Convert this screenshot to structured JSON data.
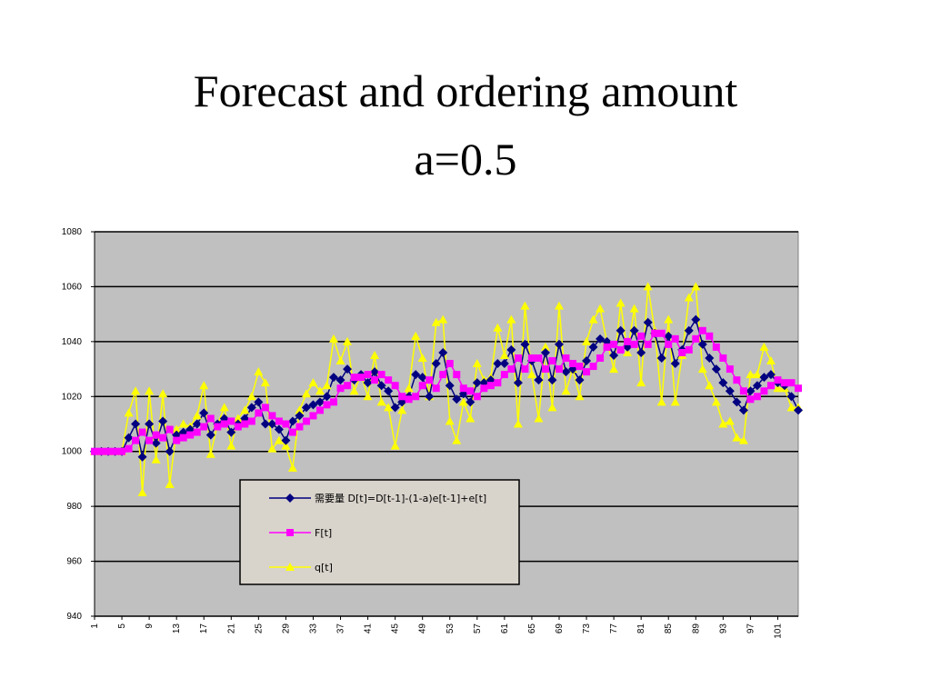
{
  "chart_data": {
    "type": "line",
    "title": "Forecast and ordering amount",
    "subtitle": "a=0.5",
    "categories": [
      "1",
      null,
      null,
      null,
      "5",
      null,
      null,
      null,
      "9",
      null,
      null,
      null,
      "13",
      null,
      null,
      null,
      "17",
      null,
      null,
      null,
      "21",
      null,
      null,
      null,
      "25",
      null,
      null,
      null,
      "29",
      null,
      null,
      null,
      "33",
      null,
      null,
      null,
      "37",
      null,
      null,
      null,
      "41",
      null,
      null,
      null,
      "45",
      null,
      null,
      null,
      "49",
      null,
      null,
      null,
      "53",
      null,
      null,
      null,
      "57",
      null,
      null,
      null,
      "61",
      null,
      null,
      null,
      "65",
      null,
      null,
      null,
      "69",
      null,
      null,
      null,
      "73",
      null,
      null,
      null,
      "77",
      null,
      null,
      null,
      "81",
      null,
      null,
      null,
      "85",
      null,
      null,
      null,
      "89",
      null,
      null,
      null,
      "93",
      null,
      null,
      null,
      "97",
      null,
      null,
      null,
      "101",
      null,
      null,
      null
    ],
    "series": [
      {
        "name": "需要量 D[t]=D[t-1]-(1-a)e[t-1]+e[t]",
        "color": "#000080",
        "marker": "diamond",
        "values": [
          1000,
          1000,
          1000,
          1000,
          1000,
          1005,
          1010,
          998,
          1010,
          1003,
          1011,
          1000,
          1006,
          1007,
          1008,
          1010,
          1014,
          1006,
          1010,
          1012,
          1007,
          1010,
          1012,
          1016,
          1018,
          1010,
          1010,
          1008,
          1004,
          1011,
          1013,
          1016,
          1017,
          1018,
          1020,
          1027,
          1026,
          1030,
          1026,
          1028,
          1025,
          1029,
          1024,
          1022,
          1016,
          1018,
          1020,
          1028,
          1027,
          1020,
          1032,
          1036,
          1024,
          1019,
          1021,
          1018,
          1025,
          1025,
          1026,
          1032,
          1032,
          1037,
          1025,
          1039,
          1033,
          1026,
          1036,
          1026,
          1039,
          1029,
          1030,
          1026,
          1033,
          1038,
          1041,
          1040,
          1035,
          1044,
          1038,
          1044,
          1036,
          1047,
          1043,
          1034,
          1042,
          1032,
          1037,
          1044,
          1048,
          1039,
          1034,
          1030,
          1025,
          1022,
          1018,
          1015,
          1022,
          1024,
          1027,
          1028,
          1025,
          1024,
          1020,
          1015
        ]
      },
      {
        "name": "F[t]",
        "color": "#ff00ff",
        "marker": "square",
        "values": [
          1000,
          1000,
          1000,
          1000,
          1000,
          1001,
          1004,
          1007,
          1004,
          1006,
          1005,
          1008,
          1004,
          1005,
          1006,
          1007,
          1009,
          1012,
          1009,
          1010,
          1011,
          1009,
          1010,
          1011,
          1014,
          1016,
          1013,
          1011,
          1010,
          1007,
          1009,
          1011,
          1013,
          1015,
          1017,
          1018,
          1023,
          1024,
          1027,
          1027,
          1028,
          1026,
          1028,
          1026,
          1024,
          1020,
          1019,
          1020,
          1024,
          1026,
          1023,
          1028,
          1032,
          1028,
          1023,
          1022,
          1020,
          1023,
          1024,
          1025,
          1028,
          1030,
          1034,
          1030,
          1034,
          1034,
          1030,
          1033,
          1030,
          1034,
          1032,
          1031,
          1029,
          1031,
          1034,
          1038,
          1039,
          1037,
          1040,
          1039,
          1042,
          1039,
          1043,
          1043,
          1039,
          1041,
          1036,
          1037,
          1041,
          1044,
          1042,
          1038,
          1034,
          1030,
          1026,
          1022,
          1019,
          1020,
          1022,
          1024,
          1026,
          1025,
          1025,
          1023
        ]
      },
      {
        "name": "q[t]",
        "color": "#ffff00",
        "marker": "triangle",
        "values": [
          1000,
          1000,
          1000,
          1000,
          1000,
          1014,
          1022,
          985,
          1022,
          997,
          1021,
          988,
          1008,
          1010,
          1009,
          1013,
          1024,
          999,
          1010,
          1016,
          1002,
          1012,
          1015,
          1020,
          1029,
          1025,
          1001,
          1004,
          1002,
          994,
          1015,
          1021,
          1025,
          1022,
          1024,
          1041,
          1033,
          1040,
          1022,
          1028,
          1020,
          1035,
          1018,
          1016,
          1002,
          1015,
          1023,
          1042,
          1034,
          1020,
          1047,
          1048,
          1011,
          1004,
          1018,
          1012,
          1032,
          1026,
          1027,
          1045,
          1035,
          1048,
          1010,
          1053,
          1028,
          1012,
          1038,
          1016,
          1053,
          1022,
          1030,
          1020,
          1040,
          1048,
          1052,
          1040,
          1030,
          1054,
          1036,
          1052,
          1025,
          1060,
          1044,
          1018,
          1048,
          1018,
          1035,
          1056,
          1060,
          1030,
          1024,
          1018,
          1010,
          1011,
          1005,
          1004,
          1028,
          1028,
          1038,
          1033,
          1023,
          1023,
          1016,
          1016
        ]
      }
    ],
    "ylim": [
      940,
      1080
    ],
    "yticks": [
      940,
      960,
      980,
      1000,
      1020,
      1040,
      1060,
      1080
    ],
    "grid": true,
    "plot_color": "#c0c0c0"
  }
}
